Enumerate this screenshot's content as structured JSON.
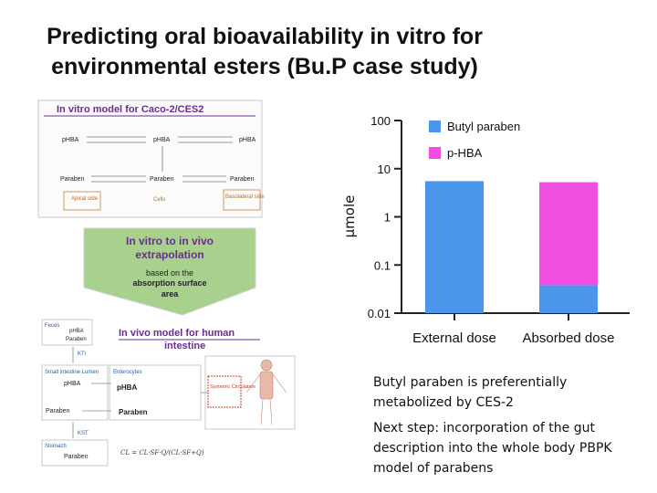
{
  "slide": {
    "title_line1": "Predicting oral bioavailability in vitro for",
    "title_line2": "environmental esters (Bu.P case study)",
    "note1_line1": "Butyl paraben is preferentially",
    "note1_line2": "metabolized by CES-2",
    "note2_line1": "Next step: incorporation of the gut",
    "note2_line2": "description into the whole body PBPK",
    "note2_line3": "model of parabens"
  },
  "diagram": {
    "vitro_title": "In vitro model for Caco-2/CES2",
    "phba": "pHBA",
    "paraben": "Paraben",
    "apical": "Apical side",
    "cells": "Cells",
    "basolateral": "Basolateral side",
    "arrow_line1": "In vitro to in vivo",
    "arrow_line2": "extrapolation",
    "arrow_line3": "based on the",
    "arrow_line4": "absorption surface",
    "arrow_line5": "area",
    "vivo_title_line1": "In vivo model for human",
    "vivo_title_line2": "intestine",
    "feces": "Feces",
    "small_intestine": "Small intestine Lumen",
    "enterocytes": "Enterocytes",
    "stomach": "Stomach",
    "systemic": "Systemic Circulation",
    "ktr": "KTr",
    "kst": "KST"
  },
  "chart_data": {
    "type": "bar",
    "categories": [
      "External dose",
      "Absorbed dose"
    ],
    "series": [
      {
        "name": "Butyl paraben",
        "color": "#4b96ea",
        "values": [
          5.5,
          0.028
        ]
      },
      {
        "name": "p-HBA",
        "color": "#ee4fe0",
        "values": [
          0,
          5.2
        ]
      }
    ],
    "stacked": true,
    "ylabel": "µmole",
    "yscale": "log",
    "ylim": [
      0.01,
      100
    ],
    "yticks": [
      "0.01",
      "0.1",
      "1",
      "10",
      "100"
    ],
    "legend": "top-right"
  }
}
